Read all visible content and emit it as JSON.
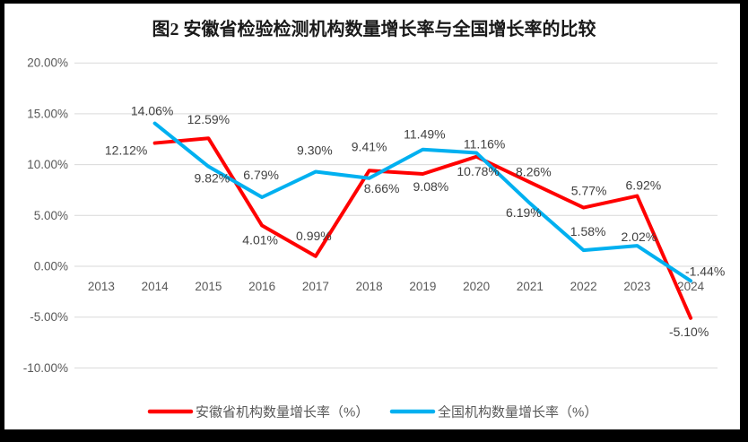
{
  "title": "图2 安徽省检验检测机构数量增长率与全国增长率的比较",
  "chart_data": {
    "type": "line",
    "title": "图2 安徽省检验检测机构数量增长率与全国增长率的比较",
    "categories": [
      "2013",
      "2014",
      "2015",
      "2016",
      "2017",
      "2018",
      "2019",
      "2020",
      "2021",
      "2022",
      "2023",
      "2024"
    ],
    "y_axis": {
      "min": -10,
      "max": 20,
      "step": 5,
      "tick_labels": [
        "20.00%",
        "15.00%",
        "10.00%",
        "5.00%",
        "0.00%",
        "-5.00%",
        "-10.00%"
      ]
    },
    "grid": true,
    "legend_position": "bottom",
    "series": [
      {
        "name": "安徽省机构数量增长率（%）",
        "color": "#ff0000",
        "start_index": 1,
        "values": [
          12.12,
          12.59,
          4.01,
          0.99,
          9.41,
          9.08,
          10.78,
          8.26,
          5.77,
          6.92,
          -5.1
        ],
        "point_labels": [
          "12.12%",
          "12.59%",
          "4.01%",
          "0.99%",
          "9.41%",
          "9.08%",
          "10.78%",
          "8.26%",
          "5.77%",
          "6.92%",
          "-5.10%"
        ],
        "label_offsets": [
          [
            -32,
            13
          ],
          [
            0,
            -16
          ],
          [
            -2,
            21
          ],
          [
            -2,
            -18
          ],
          [
            0,
            -22
          ],
          [
            9,
            19
          ],
          [
            2,
            21
          ],
          [
            4,
            -7
          ],
          [
            6,
            -14
          ],
          [
            7,
            -7
          ],
          [
            -2,
            20
          ]
        ]
      },
      {
        "name": "全国机构数量增长率（%）",
        "color": "#00b0f0",
        "start_index": 1,
        "values": [
          14.06,
          9.82,
          6.79,
          9.3,
          8.66,
          11.49,
          11.16,
          6.19,
          1.58,
          2.02,
          -1.44
        ],
        "point_labels": [
          "14.06%",
          "9.82%",
          "6.79%",
          "9.30%",
          "8.66%",
          "11.49%",
          "11.16%",
          "6.19%",
          "1.58%",
          "2.02%",
          "-1.44%"
        ],
        "label_offsets": [
          [
            -3,
            -9
          ],
          [
            4,
            18
          ],
          [
            -1,
            -20
          ],
          [
            -1,
            -19
          ],
          [
            14,
            16
          ],
          [
            2,
            -12
          ],
          [
            9,
            -5
          ],
          [
            -7,
            15
          ],
          [
            5,
            -16
          ],
          [
            2,
            -5
          ],
          [
            16,
            -6
          ]
        ]
      }
    ],
    "colors": {
      "grid": "#d9d9d9",
      "axis_text": "#595959",
      "data_label": "#404040",
      "frame_border": "#000000"
    }
  }
}
